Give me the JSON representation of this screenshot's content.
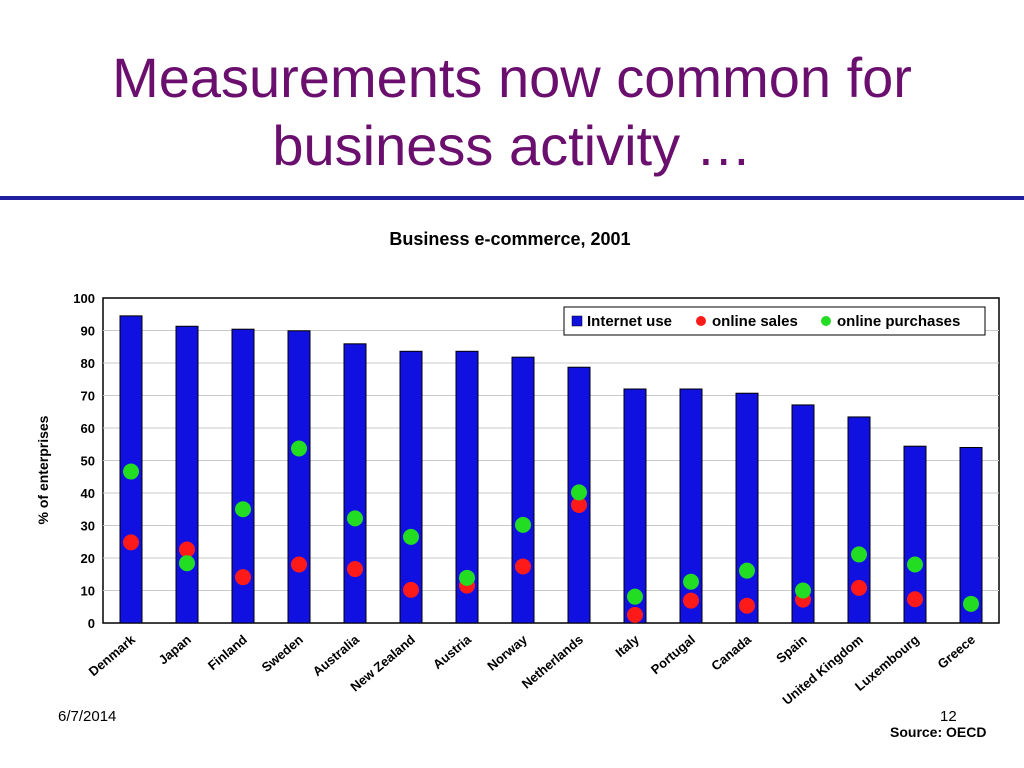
{
  "slide": {
    "title_line1": "Measurements now common for",
    "title_line2": "business activity …",
    "date": "6/7/2014",
    "page_number": "12",
    "source": "Source: OECD"
  },
  "colors": {
    "title": "#6b0f6f",
    "rule": "#1f1fa0",
    "bar": "#1010e0",
    "online_sales": "#ff1a1a",
    "online_purchases": "#22dd22"
  },
  "chart_data": {
    "type": "bar",
    "title": "Business e-commerce, 2001",
    "xlabel": "",
    "ylabel": "% of enterprises",
    "ylim": [
      0,
      100
    ],
    "yticks": [
      0,
      10,
      20,
      30,
      40,
      50,
      60,
      70,
      80,
      90,
      100
    ],
    "grid": true,
    "legend_position": "top-right",
    "categories": [
      "Denmark",
      "Japan",
      "Finland",
      "Sweden",
      "Australia",
      "New Zealand",
      "Austria",
      "Norway",
      "Netherlands",
      "Italy",
      "Portugal",
      "Canada",
      "Spain",
      "United Kingdom",
      "Luxembourg",
      "Greece"
    ],
    "series": [
      {
        "name": "Internet use",
        "kind": "bar",
        "values": [
          94.5,
          91.3,
          90.4,
          89.9,
          85.9,
          83.6,
          83.6,
          81.8,
          78.7,
          72.0,
          72.0,
          70.7,
          67.1,
          63.4,
          54.4,
          54.0
        ]
      },
      {
        "name": "online sales",
        "kind": "marker",
        "values": [
          24.8,
          22.6,
          14.1,
          18.0,
          16.6,
          10.2,
          11.5,
          17.4,
          36.3,
          2.5,
          6.9,
          5.3,
          7.2,
          10.8,
          7.3,
          null
        ]
      },
      {
        "name": "online purchases",
        "kind": "marker",
        "values": [
          46.6,
          18.4,
          35.0,
          53.7,
          32.2,
          26.5,
          13.9,
          30.2,
          40.2,
          8.1,
          12.7,
          16.1,
          10.0,
          21.1,
          18.0,
          5.9
        ]
      }
    ]
  }
}
